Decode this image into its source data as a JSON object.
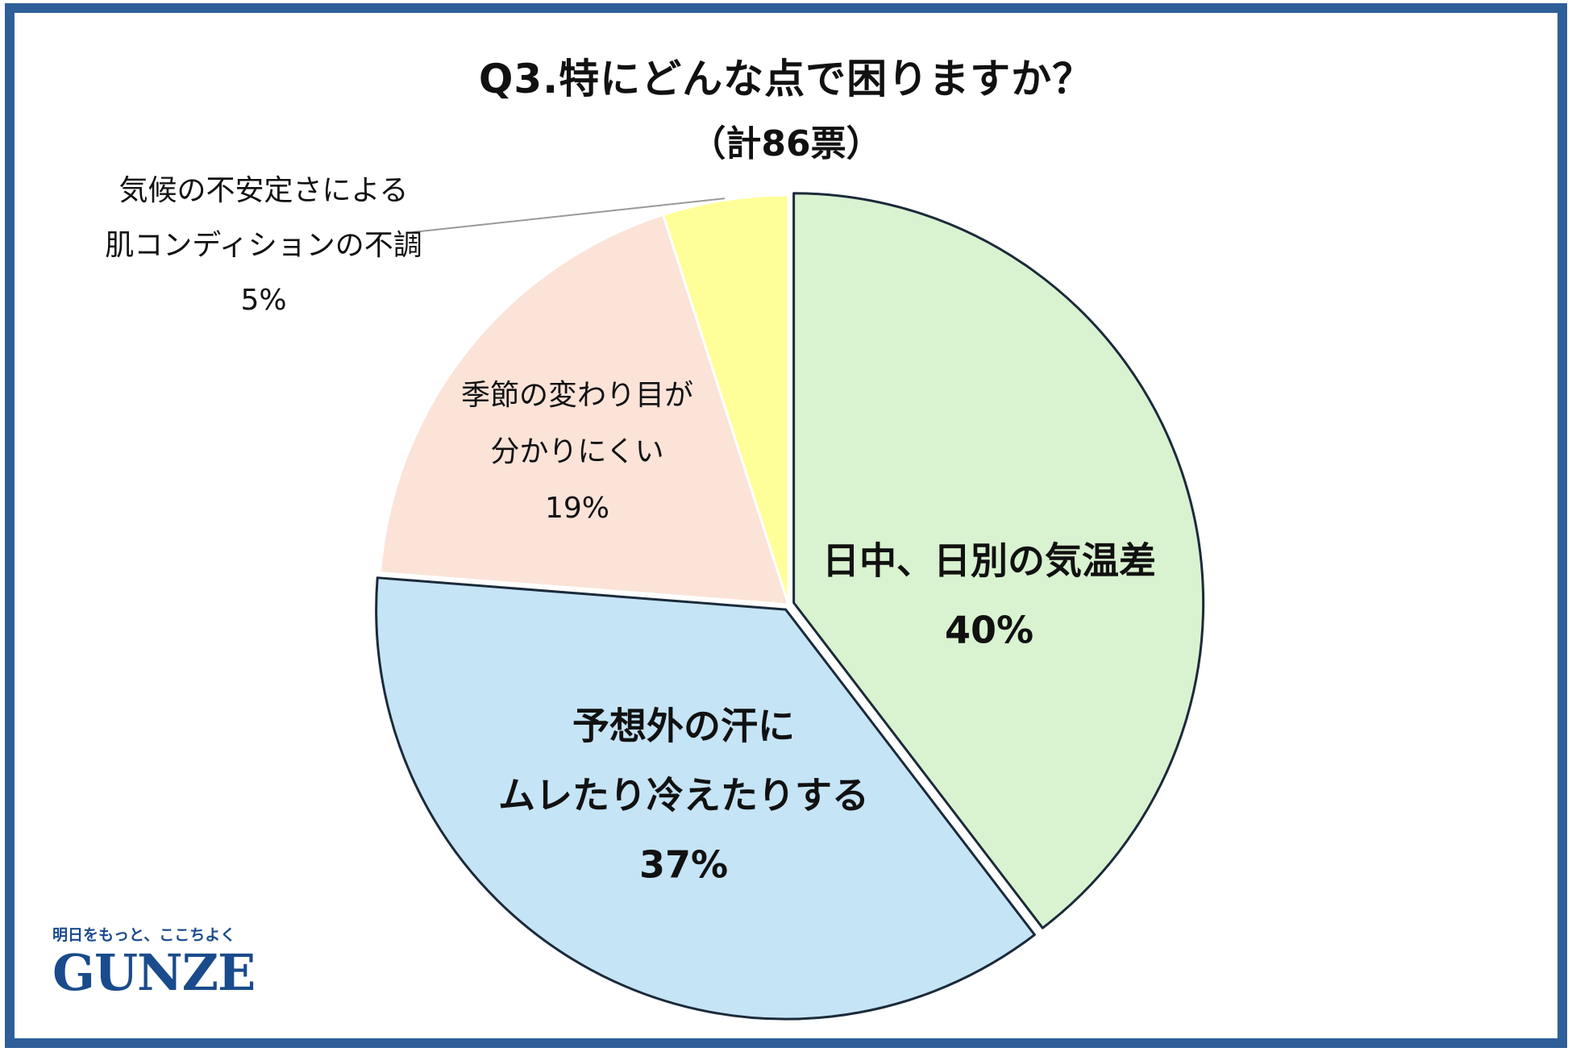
{
  "chart_data": {
    "type": "pie",
    "title": "Q3.特にどんな点で困りますか？",
    "subtitle": "（計86票）",
    "start": "top",
    "direction": "clockwise",
    "slices": [
      {
        "lines": [
          "日中、日別の気温差"
        ],
        "value": 40,
        "value_label": "40%",
        "color": "#d9f2d0",
        "label_style": "bold-large",
        "exploded": true
      },
      {
        "lines": [
          "予想外の汗に",
          "ムレたり冷えたりする"
        ],
        "value": 37,
        "value_label": "37%",
        "color": "#c5e4f6",
        "label_style": "bold-large",
        "exploded": true
      },
      {
        "lines": [
          "季節の変わり目が",
          "分かりにくい"
        ],
        "value": 19,
        "value_label": "19%",
        "color": "#fbe3d8",
        "label_style": "normal",
        "exploded": false
      },
      {
        "lines": [
          "気候の不安定さによる",
          "肌コンディションの不調"
        ],
        "value": 5,
        "value_label": "5%",
        "color": "#ffff99",
        "label_style": "normal-outside",
        "exploded": false
      }
    ],
    "slice_border_color": "#ffffff",
    "outline_color": "#1b2a3a"
  },
  "branding": {
    "tagline": "明日をもっと、ここちよく",
    "logo_text": "GUNZE",
    "logo_color": "#1a4b8c"
  },
  "frame_color": "#2f5f99"
}
